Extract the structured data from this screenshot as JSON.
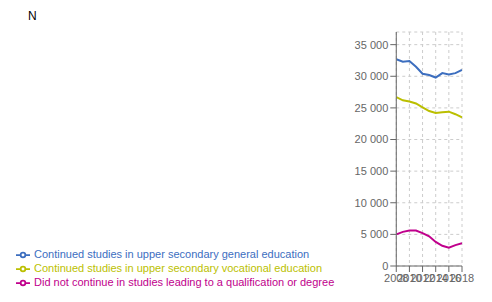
{
  "chart_data": {
    "type": "line",
    "ylabel": "N",
    "x": [
      2008,
      2009,
      2010,
      2011,
      2012,
      2013,
      2014,
      2015,
      2016,
      2017,
      2018
    ],
    "series": [
      {
        "name": "Continued studies in upper secondary  general education",
        "color": "#3C6EBF",
        "values": [
          32700,
          32300,
          32400,
          31500,
          30400,
          30200,
          29800,
          30500,
          30300,
          30500,
          31000
        ]
      },
      {
        "name": "Continued studies in upper secondary vocational education",
        "color": "#BBBF00",
        "values": [
          26700,
          26200,
          26000,
          25700,
          25100,
          24500,
          24200,
          24300,
          24400,
          24000,
          23500
        ]
      },
      {
        "name": "Did not continue in studies leading to a qualification or degree",
        "color": "#C0008C",
        "values": [
          5000,
          5400,
          5600,
          5600,
          5200,
          4700,
          3800,
          3200,
          2900,
          3300,
          3600
        ]
      }
    ],
    "xlim": [
      2008,
      2018
    ],
    "xticks": [
      2008,
      2010,
      2012,
      2014,
      2016,
      2018
    ],
    "ylim": [
      0,
      37000
    ],
    "yticks": [
      0,
      {
        "value": 5000,
        "label": "5 000"
      },
      {
        "value": 10000,
        "label": "10 000"
      },
      {
        "value": 15000,
        "label": "15 000"
      },
      {
        "value": 20000,
        "label": "20 000"
      },
      {
        "value": 25000,
        "label": "25 000"
      },
      {
        "value": 30000,
        "label": "30 000"
      },
      {
        "value": 35000,
        "label": "35 000"
      }
    ],
    "grid": true,
    "legend": "bottom"
  }
}
